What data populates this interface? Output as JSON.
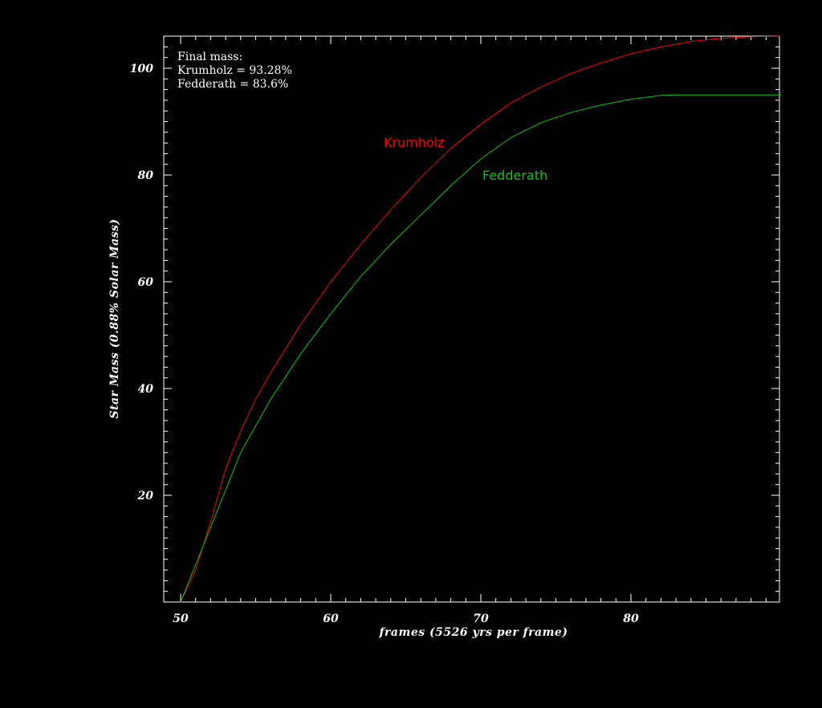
{
  "chart_data": {
    "type": "line",
    "xlabel": "frames (5526 yrs per frame)",
    "ylabel": "Star Mass (0.88% Solar Mass)",
    "xlim": [
      50,
      90
    ],
    "ylim": [
      0,
      106
    ],
    "xticks": [
      50,
      60,
      70,
      80
    ],
    "yticks": [
      20,
      40,
      60,
      80,
      100
    ],
    "grid": false,
    "annotation": {
      "lines": [
        "Final mass:",
        "Krumholz = 93.28%",
        "Fedderath = 83.6%"
      ]
    },
    "series": [
      {
        "name": "Krumholz",
        "color": "#ff0000",
        "x": [
          50,
          51,
          52,
          53,
          54,
          55,
          56,
          58,
          60,
          62,
          64,
          66,
          68,
          70,
          72,
          74,
          76,
          78,
          80,
          82,
          84,
          86,
          88,
          90
        ],
        "y": [
          0,
          6,
          15,
          25,
          32,
          38,
          43,
          52,
          60,
          67,
          73.5,
          79.5,
          85,
          89.5,
          93.5,
          96.5,
          99,
          101,
          102.7,
          104,
          105,
          105.6,
          105.9,
          106
        ]
      },
      {
        "name": "Fedderath",
        "color": "#00cc00",
        "x": [
          50,
          51,
          52,
          53,
          54,
          56,
          58,
          60,
          62,
          64,
          66,
          68,
          70,
          72,
          74,
          76,
          78,
          80,
          82,
          83,
          84,
          86,
          88,
          90
        ],
        "y": [
          0,
          7,
          14,
          21,
          28,
          38,
          46.5,
          54,
          61,
          67,
          72.5,
          78,
          83,
          87,
          89.8,
          91.7,
          93.1,
          94.2,
          94.9,
          95,
          95,
          95,
          95,
          95
        ]
      }
    ]
  }
}
